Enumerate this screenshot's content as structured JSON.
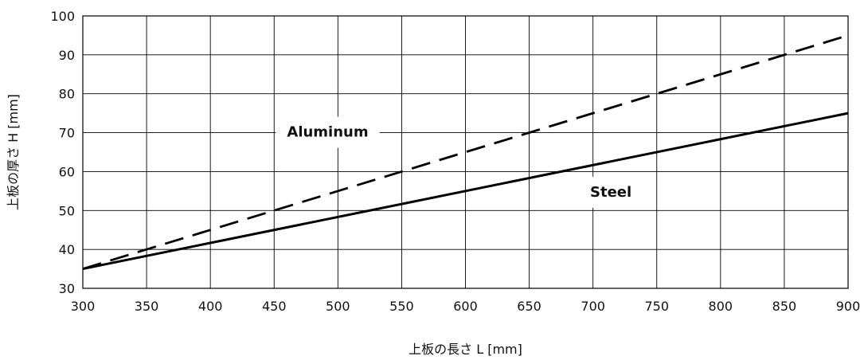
{
  "chart_data": {
    "type": "line",
    "xlabel": "上板の長さ L [mm]",
    "ylabel": "上板の厚さ H [mm]",
    "xlim": [
      300,
      900
    ],
    "ylim": [
      30,
      100
    ],
    "xticks": [
      "300",
      "350",
      "400",
      "450",
      "500",
      "550",
      "600",
      "650",
      "700",
      "750",
      "800",
      "850",
      "900"
    ],
    "yticks": [
      "30",
      "40",
      "50",
      "60",
      "70",
      "80",
      "90",
      "100"
    ],
    "grid": true,
    "series": [
      {
        "name": "Steel",
        "style": "solid",
        "color": "#000000",
        "x": [
          300,
          900
        ],
        "y": [
          35,
          75
        ]
      },
      {
        "name": "Aluminum",
        "style": "dashed",
        "color": "#000000",
        "x": [
          300,
          900
        ],
        "y": [
          35,
          95
        ]
      }
    ],
    "annotations": [
      {
        "text": "Aluminum",
        "x": 492,
        "y": 70.2
      },
      {
        "text": "Steel",
        "x": 714,
        "y": 54.8
      }
    ]
  }
}
